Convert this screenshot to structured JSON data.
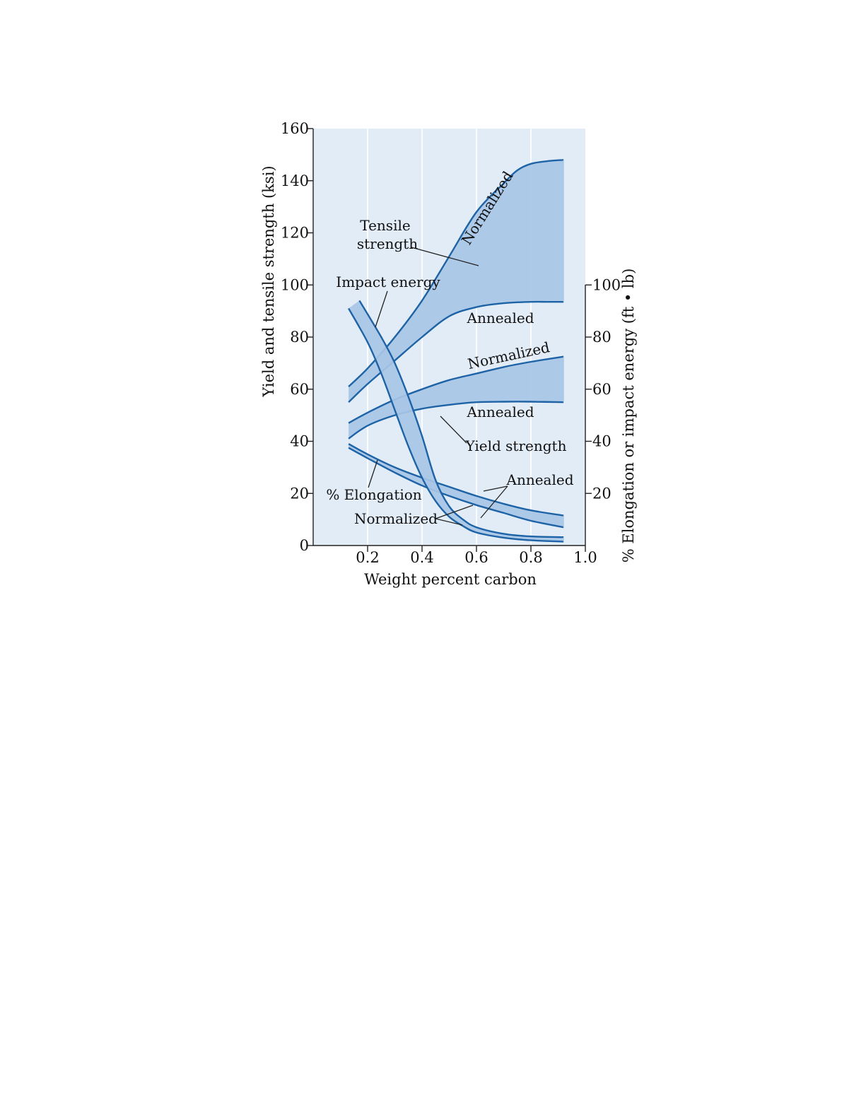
{
  "chart_data": {
    "type": "area",
    "xlabel": "Weight percent carbon",
    "ylabel_left": "Yield and tensile strength (ksi)",
    "ylabel_right": "% Elongation or impact energy (ft • lb)",
    "xlim": [
      0.0,
      1.0
    ],
    "ylim_left": [
      0,
      160
    ],
    "ylim_right": [
      0,
      100
    ],
    "x_ticks": [
      0.2,
      0.4,
      0.6,
      0.8,
      1.0
    ],
    "x_tick_labels": [
      "0.2",
      "0.4",
      "0.6",
      "0.8",
      "1.0"
    ],
    "y_left_ticks": [
      0,
      20,
      40,
      60,
      80,
      100,
      120,
      140,
      160
    ],
    "y_left_tick_labels": [
      "0",
      "20",
      "40",
      "60",
      "80",
      "100",
      "120",
      "140",
      "160"
    ],
    "y_right_ticks": [
      20,
      40,
      60,
      80,
      100
    ],
    "y_right_tick_labels": [
      "20",
      "40",
      "60",
      "80",
      "100"
    ],
    "grid": true,
    "band_color": "#a8c6e6",
    "line_color": "#1e63a6",
    "background_color": "#e1ecf7",
    "bands": [
      {
        "id": "tensile",
        "axis": "left",
        "upper": {
          "x": [
            0.13,
            0.2,
            0.3,
            0.4,
            0.5,
            0.6,
            0.7,
            0.75,
            0.8,
            0.86,
            0.92
          ],
          "y": [
            61,
            68,
            80,
            94,
            111,
            128,
            139,
            144,
            146.5,
            147.5,
            148
          ]
        },
        "lower": {
          "x": [
            0.13,
            0.2,
            0.3,
            0.4,
            0.5,
            0.6,
            0.7,
            0.8,
            0.86,
            0.92
          ],
          "y": [
            55,
            62,
            71,
            80,
            88,
            91.5,
            93,
            93.5,
            93.5,
            93.5
          ]
        }
      },
      {
        "id": "yield",
        "axis": "left",
        "upper": {
          "x": [
            0.13,
            0.2,
            0.3,
            0.4,
            0.5,
            0.6,
            0.7,
            0.8,
            0.92
          ],
          "y": [
            47,
            51,
            56,
            60,
            63.5,
            66,
            68.5,
            70.5,
            72.5
          ]
        },
        "lower": {
          "x": [
            0.13,
            0.2,
            0.3,
            0.4,
            0.5,
            0.6,
            0.7,
            0.8,
            0.92
          ],
          "y": [
            41,
            46,
            50,
            52.5,
            54,
            55,
            55.2,
            55.2,
            55
          ]
        }
      },
      {
        "id": "elongation",
        "axis": "left",
        "upper": {
          "x": [
            0.13,
            0.2,
            0.3,
            0.4,
            0.5,
            0.6,
            0.7,
            0.8,
            0.92
          ],
          "y": [
            39,
            35,
            30,
            26,
            22.5,
            19,
            16,
            13.5,
            11.5
          ]
        },
        "lower": {
          "x": [
            0.13,
            0.2,
            0.3,
            0.4,
            0.5,
            0.6,
            0.7,
            0.8,
            0.92
          ],
          "y": [
            37.5,
            33.5,
            28,
            23,
            19,
            15.5,
            12.5,
            9.5,
            7
          ]
        }
      },
      {
        "id": "impact",
        "axis": "left",
        "upper": {
          "x": [
            0.17,
            0.25,
            0.3,
            0.35,
            0.4,
            0.45,
            0.5,
            0.55,
            0.6,
            0.7,
            0.8,
            0.92
          ],
          "y": [
            94,
            80,
            70,
            57,
            42,
            25,
            15,
            10,
            7,
            4.5,
            3.5,
            3.2
          ]
        },
        "lower": {
          "x": [
            0.13,
            0.2,
            0.25,
            0.3,
            0.35,
            0.4,
            0.45,
            0.5,
            0.55,
            0.6,
            0.7,
            0.8,
            0.92
          ],
          "y": [
            91,
            78,
            66,
            52,
            38,
            26,
            17,
            11,
            7.5,
            5,
            3,
            2,
            1.5
          ]
        }
      }
    ],
    "annotations": {
      "tensile_title_1": "Tensile",
      "tensile_title_2": "strength",
      "tensile_normalized": "Normalized",
      "tensile_annealed": "Annealed",
      "yield_normalized": "Normalized",
      "yield_annealed": "Annealed",
      "yield_title": "Yield strength",
      "impact_title": "Impact energy",
      "elongation_title": "% Elongation",
      "elongation_annealed": "Annealed",
      "elongation_normalized": "Normalized"
    }
  }
}
